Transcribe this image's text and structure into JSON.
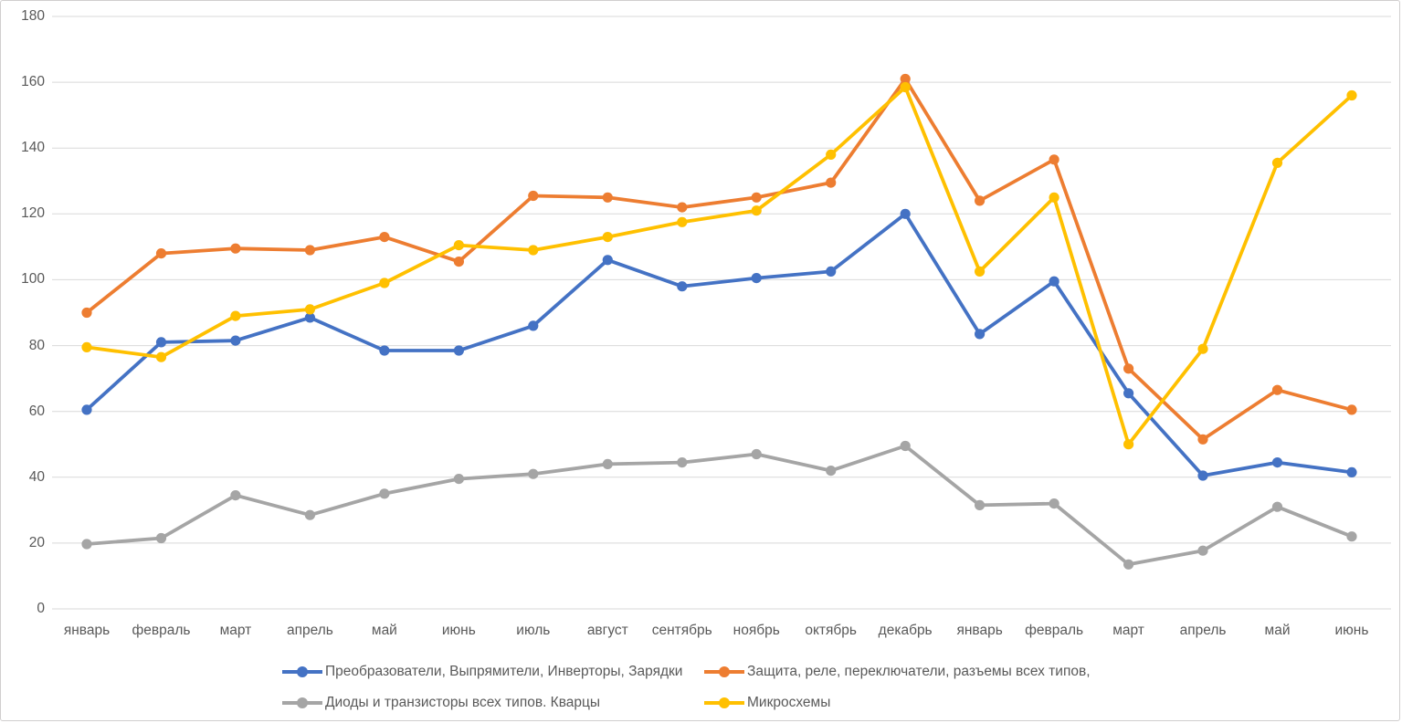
{
  "chart_data": {
    "type": "line",
    "title": "",
    "xlabel": "",
    "ylabel": "",
    "categories": [
      "январь",
      "февраль",
      "март",
      "апрель",
      "май",
      "июнь",
      "июль",
      "август",
      "сентябрь",
      "ноябрь",
      "октябрь",
      "декабрь",
      "январь",
      "февраль",
      "март",
      "апрель",
      "май",
      "июнь"
    ],
    "series": [
      {
        "name": "Преобразователи, Выпрямители, Инверторы, Зарядки",
        "color": "#4472C4",
        "values": [
          60.5,
          81,
          81.5,
          88.5,
          78.5,
          78.5,
          86,
          106,
          98,
          100.5,
          102.5,
          120,
          83.5,
          99.5,
          65.5,
          40.5,
          44.5,
          41.5
        ]
      },
      {
        "name": "Защита, реле, переключатели, разъемы всех типов,",
        "color": "#ED7D31",
        "values": [
          90,
          108,
          109.5,
          109,
          113,
          105.5,
          125.5,
          125,
          122,
          125,
          129.5,
          161,
          124,
          136.5,
          73,
          51.5,
          66.5,
          60.5
        ]
      },
      {
        "name": "Диоды и транзисторы всех типов.  Кварцы",
        "color": "#A5A5A5",
        "values": [
          19.7,
          21.5,
          34.5,
          28.5,
          35,
          39.5,
          41,
          44,
          44.5,
          47,
          42,
          49.5,
          31.5,
          32,
          13.5,
          17.7,
          31,
          22
        ]
      },
      {
        "name": "Микросхемы",
        "color": "#FFC000",
        "values": [
          79.5,
          76.5,
          89,
          91,
          99,
          110.5,
          109,
          113,
          117.5,
          121,
          138,
          158.5,
          102.5,
          125,
          50,
          79,
          135.5,
          156
        ]
      }
    ],
    "y_ticks": [
      0,
      20,
      40,
      60,
      80,
      100,
      120,
      140,
      160,
      180
    ],
    "ylim": [
      0,
      180
    ],
    "grid": "horizontal",
    "gridline_color": "#D9D9D9",
    "axis_line_color": "#D9D9D9",
    "tick_label_color": "#595959",
    "legend_position": "bottom",
    "marker": "circle"
  }
}
